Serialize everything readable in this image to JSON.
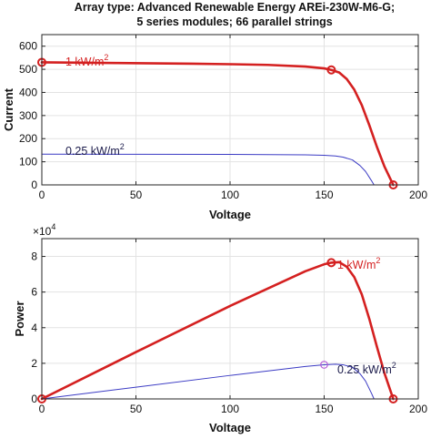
{
  "title_lines": [
    "Array type: Advanced Renewable Energy AREi-230W-M6-G;",
    "5 series modules; 66 parallel strings"
  ],
  "colors": {
    "strong": "#d42020",
    "weak": "#3b3bc4",
    "weak_marker": "#b455d6"
  },
  "chart_data": [
    {
      "type": "line",
      "xlabel": "Voltage",
      "ylabel": "Current",
      "xlim": [
        0,
        200
      ],
      "ylim": [
        0,
        650
      ],
      "xticks": [
        0,
        50,
        100,
        150,
        200
      ],
      "yticks": [
        0,
        100,
        200,
        300,
        400,
        500,
        600
      ],
      "grid": true,
      "series": [
        {
          "name": "1 kW/m2",
          "label_base": "1 kW/m",
          "label_sup": "2",
          "color": "#d42020",
          "x": [
            0,
            20,
            40,
            60,
            80,
            100,
            120,
            140,
            150,
            153.8,
            158,
            162,
            166,
            170,
            174,
            178,
            182,
            186.7
          ],
          "y": [
            530,
            528.5,
            527,
            525.5,
            524,
            522,
            519,
            512,
            504,
            497.4,
            486,
            458,
            412,
            345,
            258,
            165,
            80,
            0
          ],
          "markers": [
            [
              0,
              530
            ],
            [
              153.8,
              497.4
            ],
            [
              186.7,
              0
            ]
          ]
        },
        {
          "name": "0.25 kW/m2",
          "label_base": "0.25 kW/m",
          "label_sup": "2",
          "color": "#3b3bc4",
          "x": [
            0,
            50,
            100,
            140,
            150,
            156,
            160,
            165,
            169,
            172,
            175,
            176.5
          ],
          "y": [
            133,
            132.5,
            132,
            130,
            128,
            125,
            120,
            108,
            84,
            58,
            20,
            0
          ],
          "markers": []
        }
      ]
    },
    {
      "type": "line",
      "xlabel": "Voltage",
      "ylabel": "Power",
      "xlim": [
        0,
        200
      ],
      "ylim": [
        0,
        9
      ],
      "exponent_label": "×10",
      "exponent_sup": "4",
      "xticks": [
        0,
        50,
        100,
        150,
        200
      ],
      "yticks": [
        0,
        2,
        4,
        6,
        8
      ],
      "grid": true,
      "series": [
        {
          "name": "1 kW/m2",
          "label_base": "1 kW/m",
          "label_sup": "2",
          "color": "#d42020",
          "x": [
            0,
            50,
            100,
            140,
            150,
            153.8,
            158,
            162,
            166,
            170,
            174,
            178,
            182,
            186.7
          ],
          "y": [
            0,
            2.63,
            5.22,
            7.17,
            7.56,
            7.65,
            7.68,
            7.42,
            6.84,
            5.87,
            4.49,
            2.94,
            1.46,
            0
          ],
          "markers": [
            [
              0,
              0
            ],
            [
              153.8,
              7.65
            ],
            [
              186.7,
              0
            ]
          ]
        },
        {
          "name": "0.25 kW/m2",
          "label_base": "0.25 kW/m",
          "label_sup": "2",
          "color": "#3b3bc4",
          "x": [
            0,
            50,
            100,
            140,
            150,
            156,
            160,
            165,
            169,
            172,
            175,
            176.5
          ],
          "y": [
            0,
            0.66,
            1.32,
            1.82,
            1.92,
            1.95,
            1.92,
            1.78,
            1.42,
            1.0,
            0.35,
            0
          ],
          "markers": [
            [
              150,
              1.92
            ]
          ]
        }
      ]
    }
  ]
}
